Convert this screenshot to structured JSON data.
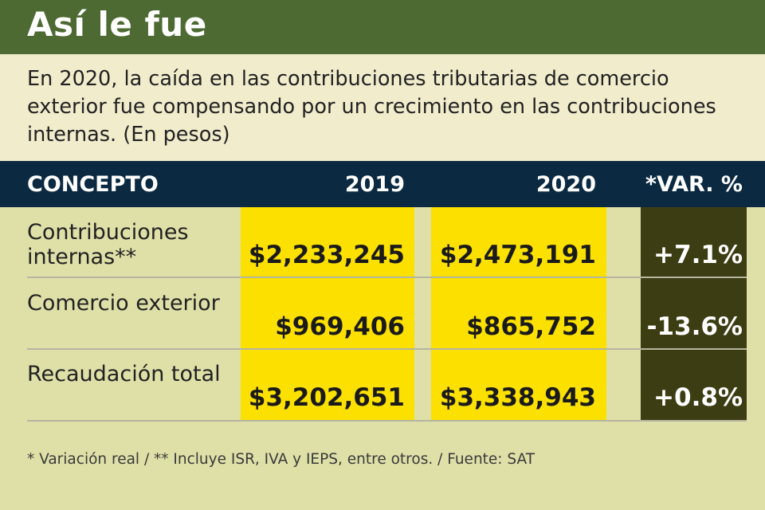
{
  "title": "Así le fue",
  "subtitle": "En 2020, la caída en las contribuciones tributarias de comercio exterior fue compensando por un crecimiento en las contribuciones internas. (En pesos)",
  "header": {
    "concepto": "CONCEPTO",
    "year1": "2019",
    "year2": "2020",
    "var": "*VAR. %"
  },
  "rows": [
    {
      "label": "Contribuciones internas**",
      "v2019": "$2,233,245",
      "v2020": "$2,473,191",
      "var": "+7.1%"
    },
    {
      "label": "Comercio exterior",
      "v2019": "$969,406",
      "v2020": "$865,752",
      "var": "-13.6%"
    },
    {
      "label": "Recaudación total",
      "v2019": "$3,202,651",
      "v2020": "$3,338,943",
      "var": "+0.8%"
    }
  ],
  "footnote": "* Variación real / ** Incluye ISR, IVA y IEPS, entre otros. / Fuente: SAT",
  "colors": {
    "title_bar": "#4d6a32",
    "header_bar": "#0b2a42",
    "value_highlight": "#fbe000",
    "var_column": "#3d3d14",
    "background": "#dfe0a8"
  },
  "chart_data": {
    "type": "table",
    "title": "Así le fue",
    "columns": [
      "CONCEPTO",
      "2019",
      "2020",
      "*VAR. %"
    ],
    "rows": [
      [
        "Contribuciones internas**",
        2233245,
        2473191,
        7.1
      ],
      [
        "Comercio exterior",
        969406,
        865752,
        -13.6
      ],
      [
        "Recaudación total",
        3202651,
        3338943,
        0.8
      ]
    ]
  }
}
